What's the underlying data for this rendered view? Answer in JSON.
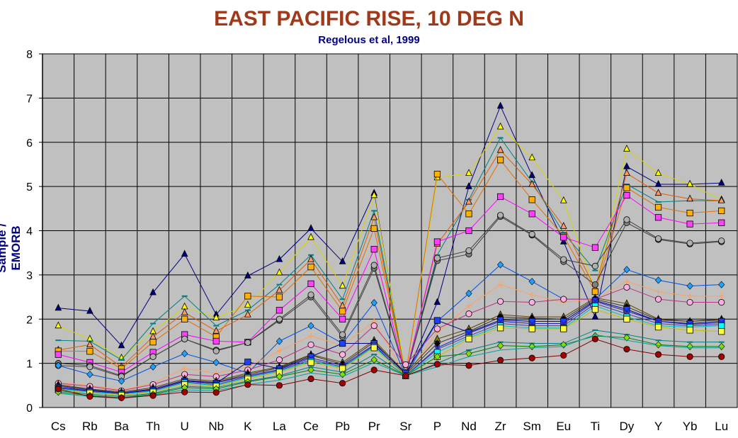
{
  "chart_data": {
    "type": "line",
    "title": "EAST PACIFIC RISE, 10 DEG N",
    "subtitle": "Regelous et al, 1999",
    "ylabel": "Sample / EMORB",
    "xlabel": "",
    "ylim": [
      0,
      8
    ],
    "yticks": [
      "0",
      "1",
      "2",
      "3",
      "4",
      "5",
      "6",
      "7",
      "8"
    ],
    "grid": true,
    "legend": "none",
    "background": "#c0c0c0",
    "categories": [
      "Cs",
      "Rb",
      "Ba",
      "Th",
      "U",
      "Nb",
      "K",
      "La",
      "Ce",
      "Pb",
      "Pr",
      "Sr",
      "P",
      "Nd",
      "Zr",
      "Sm",
      "Eu",
      "Ti",
      "Dy",
      "Y",
      "Yb",
      "Lu"
    ],
    "series": [
      {
        "color": "#000080",
        "fill": "#000080",
        "marker": "triangle",
        "values": [
          2.25,
          2.18,
          1.4,
          2.6,
          3.47,
          2.1,
          2.98,
          3.35,
          4.05,
          3.3,
          4.85,
          0.7,
          2.38,
          5.0,
          6.82,
          5.25,
          3.75,
          2.05,
          5.45,
          5.05,
          5.05,
          5.08
        ]
      },
      {
        "color": "#d8d800",
        "fill": "#ffff00",
        "marker": "triangle",
        "values": [
          1.85,
          1.55,
          1.12,
          1.72,
          2.28,
          2.03,
          2.32,
          3.05,
          3.85,
          2.75,
          4.8,
          0.75,
          5.2,
          5.3,
          6.35,
          5.65,
          4.68,
          2.65,
          5.85,
          5.3,
          5.05,
          4.7
        ]
      },
      {
        "color": "#008080",
        "fill": "#40c0c0",
        "marker": "dash",
        "values": [
          1.52,
          1.5,
          1.08,
          1.9,
          2.52,
          1.85,
          2.2,
          2.78,
          3.45,
          2.45,
          4.45,
          0.72,
          3.45,
          4.7,
          6.1,
          5.1,
          3.95,
          3.1,
          5.05,
          4.65,
          4.68,
          4.68
        ]
      },
      {
        "color": "#e06000",
        "fill": "#ff9966",
        "marker": "triangle",
        "values": [
          1.3,
          1.42,
          0.92,
          1.6,
          2.15,
          1.73,
          2.1,
          2.65,
          3.35,
          2.3,
          4.3,
          0.72,
          3.7,
          4.65,
          5.82,
          5.05,
          4.1,
          2.7,
          5.3,
          4.85,
          4.72,
          4.68
        ]
      },
      {
        "color": "#e07000",
        "fill": "#ffb000",
        "marker": "square",
        "values": [
          1.28,
          1.27,
          0.88,
          1.48,
          2.0,
          1.6,
          2.52,
          2.5,
          3.18,
          2.18,
          4.05,
          0.75,
          5.28,
          4.38,
          5.6,
          4.7,
          3.88,
          2.62,
          4.97,
          4.53,
          4.4,
          4.45
        ]
      },
      {
        "color": "#ff00ff",
        "fill": "#ff40ff",
        "marker": "square",
        "values": [
          1.2,
          1.02,
          0.8,
          1.25,
          1.65,
          1.5,
          1.48,
          2.2,
          2.8,
          2.0,
          3.58,
          0.72,
          3.75,
          4.0,
          4.77,
          4.38,
          3.85,
          3.62,
          4.8,
          4.3,
          4.15,
          4.18
        ]
      },
      {
        "color": "#404040",
        "fill": "#808080",
        "marker": "circle",
        "values": [
          1.0,
          0.95,
          0.72,
          1.15,
          1.55,
          1.3,
          1.47,
          1.97,
          2.5,
          1.6,
          3.15,
          0.73,
          3.32,
          3.47,
          4.32,
          3.9,
          3.3,
          2.78,
          4.18,
          3.8,
          3.7,
          3.75
        ]
      },
      {
        "color": "#404040",
        "fill": "#b0b0b0",
        "marker": "circle",
        "values": [
          0.95,
          0.92,
          0.7,
          1.15,
          1.55,
          1.28,
          1.47,
          2.0,
          2.55,
          1.65,
          3.22,
          0.73,
          3.38,
          3.55,
          4.35,
          3.92,
          3.35,
          3.2,
          4.25,
          3.82,
          3.72,
          3.77
        ]
      },
      {
        "color": "#0050e0",
        "fill": "#20a0ff",
        "marker": "diamond",
        "values": [
          0.95,
          0.75,
          0.6,
          0.92,
          1.22,
          1.02,
          0.78,
          1.5,
          1.85,
          1.45,
          2.37,
          0.72,
          1.95,
          2.58,
          3.23,
          2.85,
          2.45,
          2.45,
          3.12,
          2.88,
          2.75,
          2.78
        ]
      },
      {
        "color": "#ffa060",
        "fill": "#ffc090",
        "marker": "plus",
        "values": [
          0.58,
          0.5,
          0.4,
          0.55,
          0.88,
          0.78,
          0.92,
          1.28,
          1.62,
          1.4,
          1.95,
          0.72,
          1.7,
          2.3,
          2.78,
          2.55,
          2.38,
          2.45,
          2.85,
          2.62,
          2.52,
          2.52
        ]
      },
      {
        "color": "#c03080",
        "fill": "#ffb0e0",
        "marker": "circle",
        "values": [
          0.55,
          0.48,
          0.38,
          0.52,
          0.75,
          0.7,
          0.85,
          1.08,
          1.42,
          1.2,
          1.85,
          0.97,
          1.78,
          2.12,
          2.4,
          2.38,
          2.45,
          2.45,
          2.72,
          2.45,
          2.38,
          2.38
        ]
      },
      {
        "color": "#604000",
        "fill": "#808000",
        "marker": "triangle",
        "values": [
          0.52,
          0.42,
          0.35,
          0.45,
          0.65,
          0.6,
          0.78,
          0.92,
          1.2,
          1.02,
          1.52,
          0.78,
          1.55,
          1.78,
          2.1,
          2.05,
          2.05,
          2.48,
          2.35,
          2.0,
          1.95,
          2.0
        ]
      },
      {
        "color": "#303030",
        "fill": "#000000",
        "marker": "diamond",
        "values": [
          0.5,
          0.4,
          0.33,
          0.42,
          0.62,
          0.57,
          0.75,
          0.9,
          1.18,
          0.98,
          1.48,
          0.75,
          1.45,
          1.72,
          2.05,
          2.02,
          2.0,
          2.45,
          2.28,
          1.98,
          1.95,
          1.98
        ]
      },
      {
        "color": "#000080",
        "fill": "#2040ff",
        "marker": "square",
        "values": [
          0.45,
          0.38,
          0.32,
          0.4,
          0.6,
          0.55,
          1.03,
          0.88,
          1.15,
          1.45,
          1.45,
          0.78,
          1.97,
          1.7,
          1.98,
          1.95,
          1.95,
          2.42,
          2.22,
          1.95,
          1.9,
          1.95
        ]
      },
      {
        "color": "#2020c0",
        "fill": "#8080ff",
        "marker": "x",
        "values": [
          0.48,
          0.4,
          0.33,
          0.42,
          0.62,
          0.56,
          0.72,
          0.86,
          1.12,
          0.95,
          1.42,
          0.72,
          1.35,
          1.68,
          1.95,
          1.9,
          1.9,
          2.4,
          2.18,
          1.95,
          1.88,
          1.92
        ]
      },
      {
        "color": "#4040a0",
        "fill": "#a0a0ff",
        "marker": "x",
        "values": [
          0.44,
          0.36,
          0.3,
          0.38,
          0.58,
          0.52,
          0.7,
          0.84,
          1.08,
          0.92,
          1.4,
          0.72,
          1.32,
          1.62,
          1.9,
          1.85,
          1.85,
          2.35,
          2.12,
          1.9,
          1.85,
          1.88
        ]
      },
      {
        "color": "#00c0c0",
        "fill": "#00ffff",
        "marker": "square",
        "values": [
          0.42,
          0.35,
          0.3,
          0.37,
          0.56,
          0.5,
          0.68,
          0.82,
          1.05,
          0.9,
          1.38,
          0.72,
          1.25,
          1.58,
          1.85,
          1.8,
          1.8,
          2.3,
          2.05,
          1.85,
          1.82,
          1.85
        ]
      },
      {
        "color": "#c0c000",
        "fill": "#ffff40",
        "marker": "square",
        "values": [
          0.4,
          0.33,
          0.28,
          0.35,
          0.52,
          0.48,
          0.65,
          0.8,
          1.02,
          0.88,
          1.35,
          0.72,
          1.15,
          1.55,
          1.8,
          1.78,
          1.78,
          2.22,
          2.0,
          1.82,
          1.75,
          1.72
        ]
      },
      {
        "color": "#008080",
        "fill": "#20c0a0",
        "marker": "dash",
        "values": [
          0.38,
          0.3,
          0.25,
          0.32,
          0.48,
          0.45,
          0.6,
          0.72,
          0.92,
          0.8,
          1.2,
          0.72,
          1.0,
          1.3,
          1.48,
          1.45,
          1.45,
          1.75,
          1.65,
          1.52,
          1.48,
          1.48
        ]
      },
      {
        "color": "#008000",
        "fill": "#80e000",
        "marker": "diamond",
        "values": [
          0.35,
          0.27,
          0.22,
          0.3,
          0.45,
          0.42,
          0.58,
          0.7,
          0.85,
          0.75,
          1.08,
          0.72,
          1.15,
          1.22,
          1.4,
          1.38,
          1.42,
          1.62,
          1.58,
          1.42,
          1.38,
          1.38
        ]
      },
      {
        "color": "#00a0a0",
        "fill": "#00c0c0",
        "marker": "none",
        "values": [
          0.32,
          0.25,
          0.2,
          0.28,
          0.4,
          0.38,
          0.52,
          0.62,
          0.78,
          0.7,
          1.02,
          0.72,
          0.92,
          1.15,
          1.3,
          1.35,
          1.38,
          1.65,
          1.52,
          1.4,
          1.35,
          1.35
        ]
      },
      {
        "color": "#800000",
        "fill": "#a00000",
        "marker": "circle",
        "values": [
          0.42,
          0.25,
          0.22,
          0.27,
          0.35,
          0.34,
          0.52,
          0.5,
          0.65,
          0.55,
          0.85,
          0.72,
          0.98,
          0.95,
          1.07,
          1.12,
          1.18,
          1.55,
          1.32,
          1.2,
          1.15,
          1.15
        ]
      }
    ]
  }
}
